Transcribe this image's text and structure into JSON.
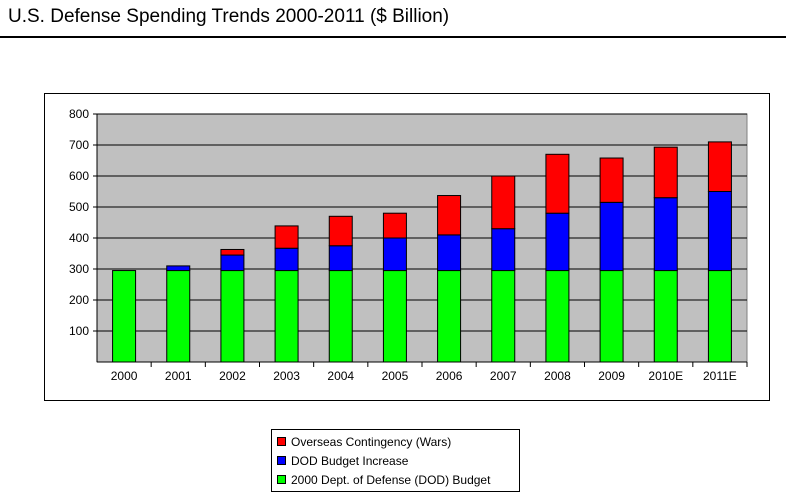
{
  "chart_data": {
    "type": "bar",
    "stacked": true,
    "title": "U.S. Defense Spending Trends 2000-2011 ($ Billion)",
    "xlabel": "",
    "ylabel": "",
    "categories": [
      "2000",
      "2001",
      "2002",
      "2003",
      "2004",
      "2005",
      "2006",
      "2007",
      "2008",
      "2009",
      "2010E",
      "2011E"
    ],
    "series": [
      {
        "name": "2000 Dept. of Defense (DOD) Budget",
        "color": "#00ff00",
        "values": [
          295,
          295,
          295,
          295,
          295,
          295,
          295,
          295,
          295,
          295,
          295,
          295
        ]
      },
      {
        "name": "DOD Budget Increase",
        "color": "#0000ff",
        "values": [
          0,
          15,
          50,
          72,
          80,
          105,
          115,
          135,
          185,
          220,
          235,
          255
        ]
      },
      {
        "name": "Overseas Contingency (Wars)",
        "color": "#ff0000",
        "values": [
          0,
          0,
          18,
          72,
          95,
          80,
          127,
          170,
          190,
          143,
          163,
          160
        ]
      }
    ],
    "ylim": [
      0,
      800
    ],
    "yticks": [
      100,
      200,
      300,
      400,
      500,
      600,
      700,
      800
    ],
    "grid": true,
    "plot_background": "#c0c0c0",
    "legend_position": "bottom",
    "legend_order": [
      "Overseas Contingency (Wars)",
      "DOD Budget Increase",
      "2000 Dept. of Defense (DOD) Budget"
    ]
  }
}
